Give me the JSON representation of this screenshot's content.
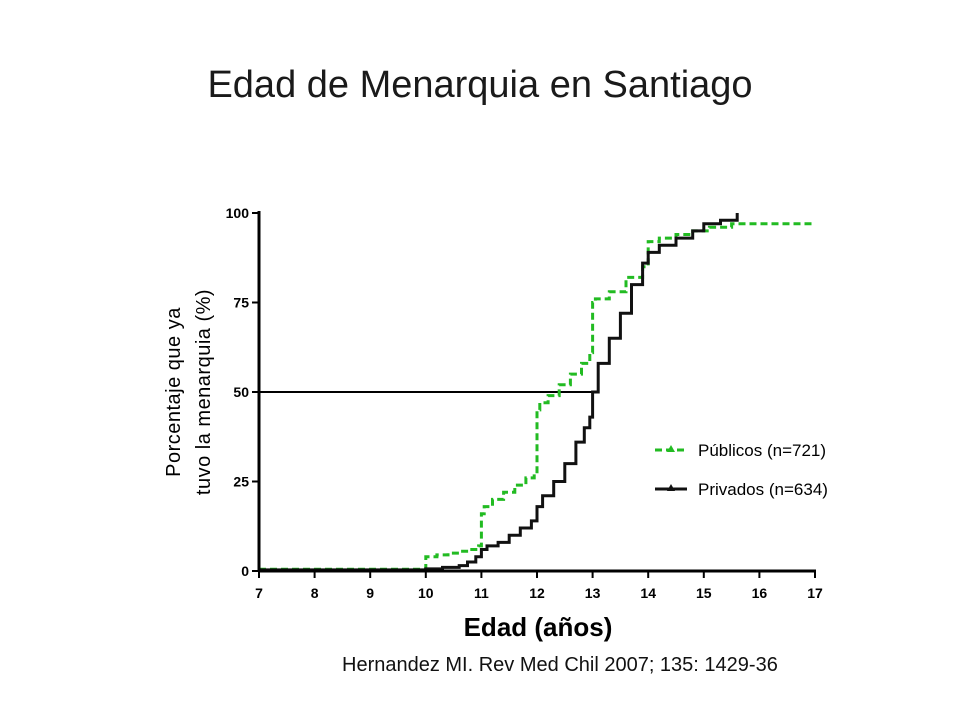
{
  "slide": {
    "title": "Edad de Menarquia en Santiago",
    "citation": "Hernandez MI. Rev Med Chil 2007; 135: 1429-36"
  },
  "chart_data": {
    "type": "line",
    "step": true,
    "xlabel": "Edad (años)",
    "ylabel_line1": "Porcentaje que ya",
    "ylabel_line2": "tuvo la menarquia (%)",
    "xlim": [
      7,
      17
    ],
    "ylim": [
      0,
      100
    ],
    "xticks": [
      7,
      8,
      9,
      10,
      11,
      12,
      13,
      14,
      15,
      16,
      17
    ],
    "yticks": [
      0,
      25,
      50,
      75,
      100
    ],
    "reference_line": {
      "y": 50,
      "x_from": 7,
      "x_to": 13
    },
    "legend_position": "right",
    "series": [
      {
        "name": "Públicos (n=721)",
        "color": "#22bb22",
        "dash": true,
        "x": [
          7.0,
          9.9,
          10.0,
          10.2,
          10.4,
          10.6,
          10.8,
          10.95,
          11.0,
          11.05,
          11.2,
          11.4,
          11.6,
          11.8,
          11.95,
          12.0,
          12.05,
          12.2,
          12.4,
          12.6,
          12.8,
          12.95,
          13.0,
          13.05,
          13.3,
          13.6,
          13.9,
          14.0,
          14.2,
          14.5,
          14.8,
          15.1,
          15.5,
          17.0
        ],
        "y": [
          0.5,
          0.5,
          4,
          4.5,
          5,
          5.5,
          6,
          7,
          16,
          18,
          20,
          22,
          24,
          26,
          27,
          45,
          47,
          49,
          52,
          55,
          58,
          61,
          75,
          76,
          78,
          82,
          85,
          92,
          93,
          94,
          95,
          96,
          97,
          97
        ]
      },
      {
        "name": "Privados (n=634)",
        "color": "#111111",
        "dash": false,
        "x": [
          7.0,
          9.8,
          10.0,
          10.3,
          10.6,
          10.75,
          10.9,
          11.0,
          11.1,
          11.3,
          11.5,
          11.7,
          11.9,
          12.0,
          12.1,
          12.3,
          12.5,
          12.7,
          12.85,
          12.95,
          13.0,
          13.1,
          13.3,
          13.5,
          13.7,
          13.9,
          14.0,
          14.2,
          14.5,
          14.8,
          15.0,
          15.3,
          15.6
        ],
        "y": [
          0.3,
          0.3,
          0.6,
          1,
          1.5,
          2.5,
          4,
          6,
          7,
          8,
          10,
          12,
          14,
          18,
          21,
          25,
          30,
          36,
          40,
          43,
          50,
          58,
          65,
          72,
          80,
          86,
          89,
          91,
          93,
          95,
          97,
          98,
          100
        ]
      }
    ]
  }
}
